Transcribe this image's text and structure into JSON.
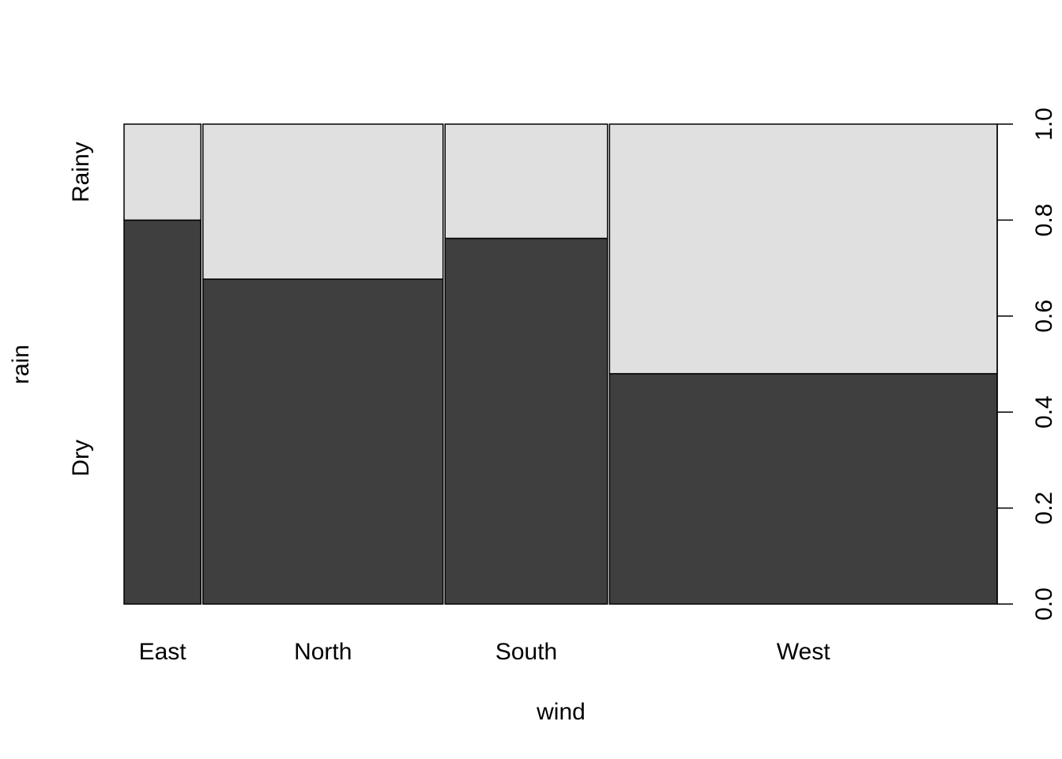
{
  "chart_data": {
    "type": "mosaic",
    "xlabel": "wind",
    "ylabel": "rain",
    "categories": [
      "East",
      "North",
      "South",
      "West"
    ],
    "category_widths": [
      0.088,
      0.275,
      0.186,
      0.444
    ],
    "y_levels": [
      "Dry",
      "Rainy"
    ],
    "dry_fraction": [
      0.8,
      0.677,
      0.762,
      0.48
    ],
    "ylim": [
      0,
      1
    ],
    "yticks": [
      0.0,
      0.2,
      0.4,
      0.6,
      0.8,
      1.0
    ],
    "ytick_labels": [
      "0.0",
      "0.2",
      "0.4",
      "0.6",
      "0.8",
      "1.0"
    ],
    "colors": {
      "Dry": "#3f3f3f",
      "Rainy": "#e0e0e0"
    }
  }
}
